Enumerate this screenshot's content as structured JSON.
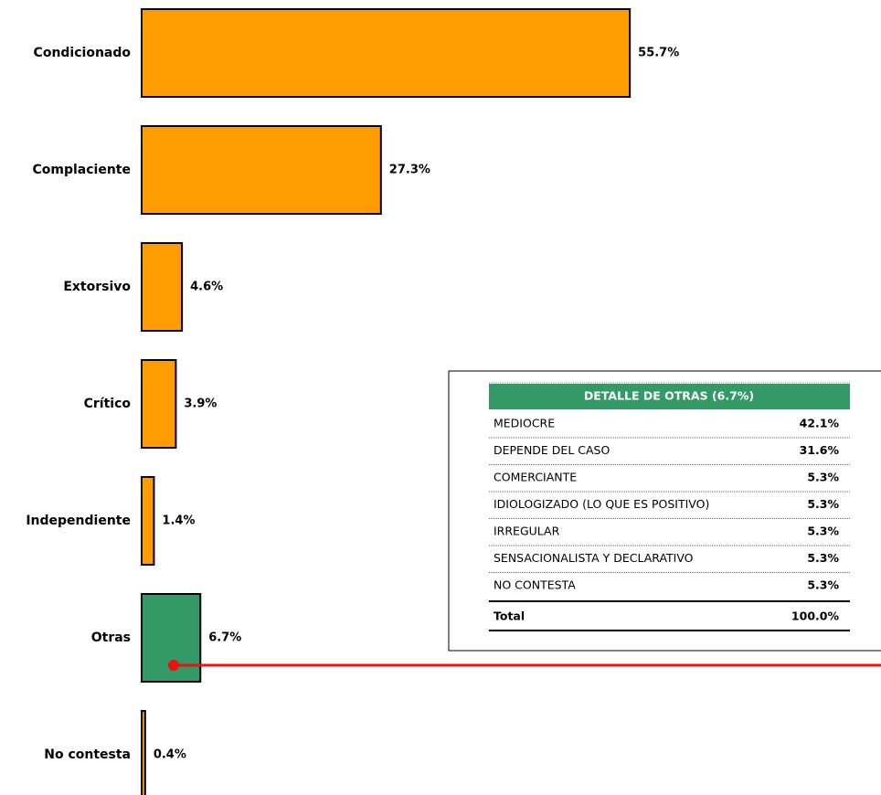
{
  "chart_data": {
    "type": "barh",
    "categories": [
      "Condicionado",
      "Complaciente",
      "Extorsivo",
      "Crítico",
      "Independiente",
      "Otras",
      "No contesta"
    ],
    "values": [
      55.7,
      27.3,
      4.6,
      3.9,
      1.4,
      6.7,
      0.4
    ],
    "value_labels": [
      "55.7%",
      "27.3%",
      "4.6%",
      "3.9%",
      "1.4%",
      "6.7%",
      "0.4%"
    ],
    "colors": [
      "#ff9c00",
      "#ff9c00",
      "#ff9c00",
      "#ff9c00",
      "#ff9c00",
      "#339966",
      "#ff9c00"
    ]
  },
  "table": {
    "title": "DETALLE DE OTRAS (6.7%)",
    "rows": [
      {
        "label": "MEDIOCRE",
        "value": "42.1%"
      },
      {
        "label": "DEPENDE DEL CASO",
        "value": "31.6%"
      },
      {
        "label": "COMERCIANTE",
        "value": "5.3%"
      },
      {
        "label": "IDIOLOGIZADO (LO QUE ES POSITIVO)",
        "value": "5.3%"
      },
      {
        "label": "IRREGULAR",
        "value": "5.3%"
      },
      {
        "label": "SENSACIONALISTA Y DECLARATIVO",
        "value": "5.3%"
      },
      {
        "label": "NO CONTESTA",
        "value": "5.3%"
      }
    ],
    "total": {
      "label": "Total",
      "value": "100.0%"
    }
  }
}
